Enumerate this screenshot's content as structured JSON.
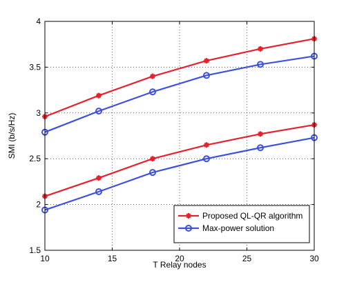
{
  "chart_data": {
    "type": "line",
    "title": "",
    "xlabel": "T Relay nodes",
    "ylabel": "SMI (b/s/Hz)",
    "xlim": [
      10,
      30
    ],
    "ylim": [
      1.5,
      4
    ],
    "xticks": [
      "10",
      "15",
      "20",
      "25",
      "30"
    ],
    "yticks": [
      "1.5",
      "2",
      "2.5",
      "3",
      "3.5",
      "4"
    ],
    "grid": true,
    "legend_position": "bottom-right",
    "x": [
      10,
      14,
      18,
      22,
      26,
      30
    ],
    "series": [
      {
        "name": "Proposed QL-QR algorithm",
        "group": "upper",
        "color": "#e8202a",
        "marker": "star",
        "values": [
          2.96,
          3.19,
          3.4,
          3.57,
          3.7,
          3.81
        ]
      },
      {
        "name": "Max-power solution",
        "group": "upper",
        "color": "#3b4fe0",
        "marker": "circle",
        "values": [
          2.79,
          3.02,
          3.23,
          3.41,
          3.53,
          3.62
        ]
      },
      {
        "name": "Proposed QL-QR algorithm",
        "group": "lower",
        "color": "#e8202a",
        "marker": "star",
        "values": [
          2.09,
          2.29,
          2.5,
          2.65,
          2.77,
          2.87
        ]
      },
      {
        "name": "Max-power solution",
        "group": "lower",
        "color": "#3b4fe0",
        "marker": "circle",
        "values": [
          1.94,
          2.14,
          2.35,
          2.5,
          2.62,
          2.73
        ]
      }
    ],
    "legend": [
      {
        "label": "Proposed QL-QR algorithm",
        "color": "#e8202a",
        "marker": "star"
      },
      {
        "label": "Max-power solution",
        "color": "#3b4fe0",
        "marker": "circle"
      }
    ]
  }
}
